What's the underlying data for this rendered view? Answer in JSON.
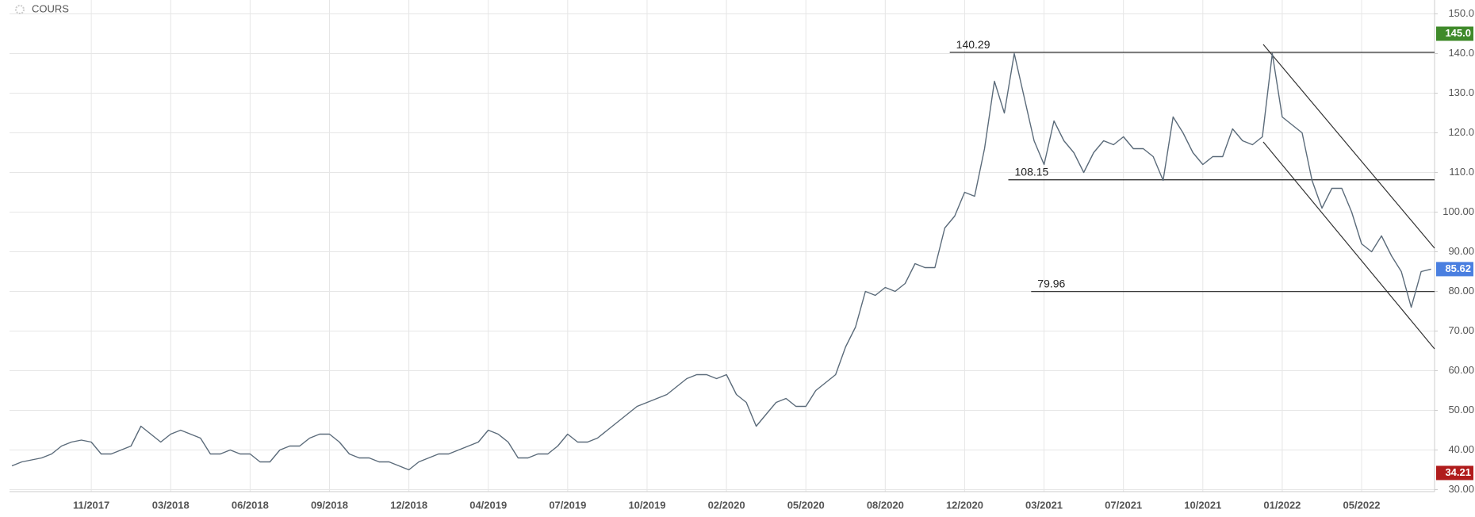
{
  "chart_data": {
    "type": "line",
    "title": "COURS",
    "categories": [
      null,
      null,
      null,
      null,
      null,
      null,
      null,
      null,
      "11/2017",
      null,
      null,
      null,
      null,
      null,
      null,
      null,
      "03/2018",
      null,
      null,
      null,
      null,
      null,
      null,
      null,
      "06/2018",
      null,
      null,
      null,
      null,
      null,
      null,
      null,
      "09/2018",
      null,
      null,
      null,
      null,
      null,
      null,
      null,
      "12/2018",
      null,
      null,
      null,
      null,
      null,
      null,
      null,
      "04/2019",
      null,
      null,
      null,
      null,
      null,
      null,
      null,
      "07/2019",
      null,
      null,
      null,
      null,
      null,
      null,
      null,
      "10/2019",
      null,
      null,
      null,
      null,
      null,
      null,
      null,
      "02/2020",
      null,
      null,
      null,
      null,
      null,
      null,
      null,
      "05/2020",
      null,
      null,
      null,
      null,
      null,
      null,
      null,
      "08/2020",
      null,
      null,
      null,
      null,
      null,
      null,
      null,
      "12/2020",
      null,
      null,
      null,
      null,
      null,
      null,
      null,
      "03/2021",
      null,
      null,
      null,
      null,
      null,
      null,
      null,
      "07/2021",
      null,
      null,
      null,
      null,
      null,
      null,
      null,
      "10/2021",
      null,
      null,
      null,
      null,
      null,
      null,
      null,
      "01/2022",
      null,
      null,
      null,
      null,
      null,
      null,
      null,
      "05/2022",
      null,
      null,
      null,
      null,
      null,
      null,
      null
    ],
    "series": [
      {
        "color": "#5b6b7a",
        "values": [
          36,
          37,
          37.5,
          38,
          39,
          41,
          42,
          42.5,
          42,
          39,
          39,
          40,
          41,
          46,
          44,
          42,
          44,
          45,
          44,
          43,
          39,
          39,
          40,
          39,
          39,
          37,
          37,
          40,
          41,
          41,
          43,
          44,
          44,
          42,
          39,
          38,
          38,
          37,
          37,
          36,
          35,
          37,
          38,
          39,
          39,
          40,
          41,
          42,
          45,
          44,
          42,
          38,
          38,
          39,
          39,
          41,
          44,
          42,
          42,
          43,
          45,
          47,
          49,
          51,
          52,
          53,
          54,
          56,
          58,
          59,
          59,
          58,
          59,
          54,
          52,
          46,
          49,
          52,
          53,
          51,
          51,
          55,
          57,
          59,
          66,
          71,
          80,
          79,
          81,
          80,
          82,
          87,
          86,
          86,
          96,
          99,
          105,
          104,
          116,
          133,
          125,
          140,
          129,
          118,
          112,
          123,
          118,
          115,
          110,
          115,
          118,
          117,
          119,
          116,
          116,
          114,
          108,
          124,
          120,
          115,
          112,
          114,
          114,
          121,
          118,
          117,
          119,
          140,
          124,
          122,
          120,
          108,
          101,
          106,
          106,
          100,
          92,
          90,
          94,
          89,
          85,
          76,
          85,
          85.62
        ]
      }
    ],
    "ylim": [
      29.5,
      153.5
    ],
    "yticks": [
      {
        "value": 30,
        "label": "30.00"
      },
      {
        "value": 40,
        "label": "40.00"
      },
      {
        "value": 50,
        "label": "50.00"
      },
      {
        "value": 60,
        "label": "60.00"
      },
      {
        "value": 70,
        "label": "70.00"
      },
      {
        "value": 80,
        "label": "80.00"
      },
      {
        "value": 90,
        "label": "90.00"
      },
      {
        "value": 100,
        "label": "100.00"
      },
      {
        "value": 110,
        "label": "110.0"
      },
      {
        "value": 120,
        "label": "120.0"
      },
      {
        "value": 130,
        "label": "130.0"
      },
      {
        "value": 140,
        "label": "140.0"
      },
      {
        "value": 150,
        "label": "150.0"
      }
    ],
    "levels": [
      140.29,
      108.15,
      79.96
    ],
    "badges": [
      {
        "value": 145,
        "label": "145.0",
        "color": "#3f8a2a"
      },
      {
        "value": 85.62,
        "color": "#4a7fe0"
      },
      {
        "value": 34.21,
        "color": "#b01c1c"
      }
    ],
    "grid": true
  }
}
